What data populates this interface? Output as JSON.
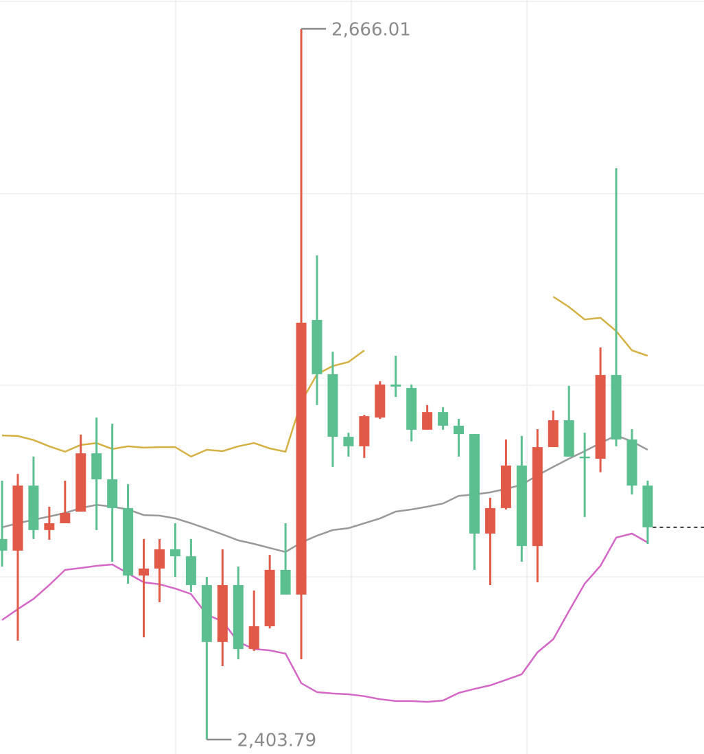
{
  "chart_data": {
    "type": "candlestick",
    "ylim": [
      2398.47,
      2676.65
    ],
    "up_color": "#e05a47",
    "down_color": "#5bbf8f",
    "open": [
      2477.8,
      2473.5,
      2497.5,
      2481.1,
      2483.6,
      2487.9,
      2509.4,
      2499.8,
      2489.2,
      2464.3,
      2466.9,
      2474.0,
      2471.4,
      2460.8,
      2439.8,
      2460.8,
      2437.2,
      2445.6,
      2466.4,
      2457.3,
      2558.6,
      2538.6,
      2515.5,
      2512.0,
      2522.6,
      2534.8,
      2533.5,
      2518.1,
      2524.6,
      2519.6,
      2516.5,
      2479.8,
      2489.2,
      2504.9,
      2475.2,
      2511.7,
      2521.6,
      2508.2,
      2507.4,
      2538.3,
      2514.5,
      2497.5
    ],
    "high": [
      2499.3,
      2501.8,
      2508.2,
      2489.7,
      2499.3,
      2516.3,
      2522.6,
      2520.3,
      2498.0,
      2477.8,
      2477.8,
      2483.6,
      2477.8,
      2463.8,
      2474.0,
      2467.6,
      2458.8,
      2471.9,
      2483.6,
      2666.01,
      2582.4,
      2546.9,
      2517.0,
      2523.6,
      2536.0,
      2545.4,
      2534.8,
      2527.2,
      2526.4,
      2522.1,
      2516.5,
      2493.0,
      2514.5,
      2515.8,
      2518.3,
      2525.2,
      2534.3,
      2517.0,
      2548.5,
      2614.6,
      2518.3,
      2499.3
    ],
    "low": [
      2467.6,
      2440.3,
      2477.8,
      2477.5,
      2483.6,
      2487.9,
      2481.1,
      2469.4,
      2461.3,
      2441.5,
      2454.5,
      2463.8,
      2458.3,
      2403.79,
      2430.9,
      2433.4,
      2436.5,
      2444.8,
      2457.3,
      2433.4,
      2527.2,
      2504.4,
      2508.2,
      2507.7,
      2522.1,
      2530.2,
      2513.8,
      2518.1,
      2518.1,
      2508.2,
      2466.4,
      2460.8,
      2488.7,
      2469.4,
      2461.8,
      2511.7,
      2508.2,
      2485.9,
      2502.4,
      2512.0,
      2494.2,
      2476.0
    ],
    "close": [
      2473.5,
      2497.5,
      2481.1,
      2483.6,
      2487.4,
      2509.4,
      2499.8,
      2489.2,
      2464.3,
      2466.9,
      2474.0,
      2471.4,
      2460.8,
      2439.8,
      2460.8,
      2437.2,
      2445.6,
      2466.4,
      2457.3,
      2557.6,
      2538.6,
      2515.5,
      2512.0,
      2523.1,
      2534.8,
      2534.0,
      2518.1,
      2524.6,
      2519.6,
      2516.5,
      2479.8,
      2489.2,
      2504.9,
      2475.2,
      2511.7,
      2521.6,
      2508.2,
      2507.7,
      2538.3,
      2514.5,
      2497.5,
      2482.1
    ],
    "lines": [
      {
        "color": "#d4b043",
        "values": [
          2516.0,
          2515.8,
          2514.3,
          2512.0,
          2510.0,
          2512.5,
          2513.2,
          2511.0,
          2512.0,
          2511.5,
          2511.7,
          2511.7,
          2508.2,
          2510.7,
          2510.2,
          2512.0,
          2513.2,
          2511.2,
          2510.0,
          2528.4,
          2538.6,
          2541.6,
          2543.1,
          2547.4,
          null,
          null,
          null,
          null,
          null,
          null,
          null,
          null,
          null,
          null,
          null,
          2567.2,
          2563.4,
          2558.8,
          2559.4,
          2554.5,
          2547.4,
          2545.4
        ]
      },
      {
        "color": "#999999",
        "values": [
          2482.1,
          2483.6,
          2484.9,
          2486.1,
          2487.4,
          2489.2,
          2490.4,
          2489.7,
          2488.7,
          2486.6,
          2486.4,
          2485.4,
          2483.6,
          2481.6,
          2479.5,
          2477.3,
          2476.0,
          2474.5,
          2473.0,
          2476.5,
          2479.0,
          2481.1,
          2481.8,
          2483.6,
          2485.4,
          2487.9,
          2488.7,
          2489.7,
          2490.9,
          2493.7,
          2494.2,
          2495.0,
          2496.3,
          2497.8,
          2501.3,
          2504.4,
          2507.4,
          2510.2,
          2513.2,
          2516.0,
          2513.8,
          2510.7
        ]
      },
      {
        "color": "#d466c6",
        "values": [
          2447.9,
          2451.9,
          2455.7,
          2460.8,
          2466.4,
          2467.1,
          2467.9,
          2468.4,
          2465.1,
          2461.8,
          2461.1,
          2459.5,
          2457.5,
          2449.9,
          2447.4,
          2439.8,
          2437.2,
          2436.7,
          2435.5,
          2424.6,
          2421.3,
          2420.8,
          2420.5,
          2419.8,
          2418.7,
          2418.0,
          2418.0,
          2417.7,
          2418.2,
          2421.0,
          2422.5,
          2423.8,
          2425.8,
          2427.9,
          2436.0,
          2440.8,
          2451.2,
          2461.3,
          2467.9,
          2478.3,
          2479.8,
          2476.5
        ]
      }
    ],
    "annotations": [
      {
        "label": "2,666.01",
        "value": 2666.01,
        "side": "high"
      },
      {
        "label": "2,403.79",
        "value": 2403.79,
        "side": "low"
      }
    ]
  }
}
